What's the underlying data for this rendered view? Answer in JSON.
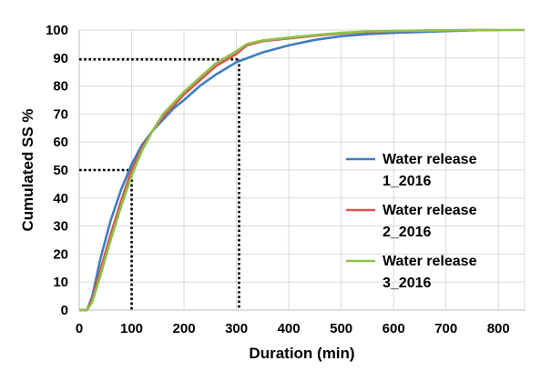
{
  "chart_data": {
    "type": "line",
    "xlabel": "Duration (min)",
    "ylabel": "Cumulated SS %",
    "xlim": [
      0,
      850
    ],
    "ylim": [
      0,
      100
    ],
    "xticks": [
      0,
      100,
      200,
      300,
      400,
      500,
      600,
      700,
      800
    ],
    "yticks": [
      0,
      10,
      20,
      30,
      40,
      50,
      60,
      70,
      80,
      90,
      100
    ],
    "grid": true,
    "legend_position": "right",
    "series": [
      {
        "name": "Water release 1_2016",
        "color": "#3d7ebf",
        "x": [
          0,
          15,
          25,
          40,
          60,
          80,
          100,
          120,
          140,
          160,
          180,
          200,
          230,
          260,
          300,
          350,
          400,
          450,
          500,
          550,
          600,
          650,
          700,
          780
        ],
        "y": [
          0,
          0,
          5,
          18,
          32,
          43,
          52,
          59,
          64,
          68,
          72,
          75,
          80,
          84,
          88.5,
          92,
          94.5,
          96.5,
          97.8,
          98.5,
          99,
          99.3,
          99.6,
          100
        ]
      },
      {
        "name": "Water release 2_2016",
        "color": "#d9534f",
        "x": [
          0,
          15,
          25,
          40,
          60,
          80,
          100,
          120,
          140,
          160,
          180,
          200,
          230,
          260,
          300,
          320,
          350,
          400,
          450,
          500,
          550,
          600,
          700,
          800
        ],
        "y": [
          0,
          0,
          4,
          14,
          27,
          39,
          50,
          58,
          64,
          69,
          73,
          77,
          82,
          87,
          91.5,
          94.5,
          96,
          97,
          98,
          98.8,
          99.3,
          99.6,
          99.9,
          100
        ]
      },
      {
        "name": "Water release 3_2016",
        "color": "#8dc34a",
        "x": [
          0,
          15,
          25,
          40,
          60,
          80,
          100,
          120,
          140,
          160,
          180,
          200,
          230,
          260,
          300,
          320,
          350,
          400,
          450,
          500,
          550,
          600,
          700,
          850
        ],
        "y": [
          0,
          0,
          3,
          12,
          25,
          37,
          48,
          57,
          64,
          70,
          74,
          78,
          83,
          88,
          92.5,
          95,
          96.3,
          97.3,
          98.2,
          99,
          99.5,
          99.7,
          99.9,
          100
        ]
      }
    ],
    "reference_lines": [
      {
        "x": 100,
        "y": 50
      },
      {
        "x": 305,
        "y": 89.5
      }
    ]
  }
}
